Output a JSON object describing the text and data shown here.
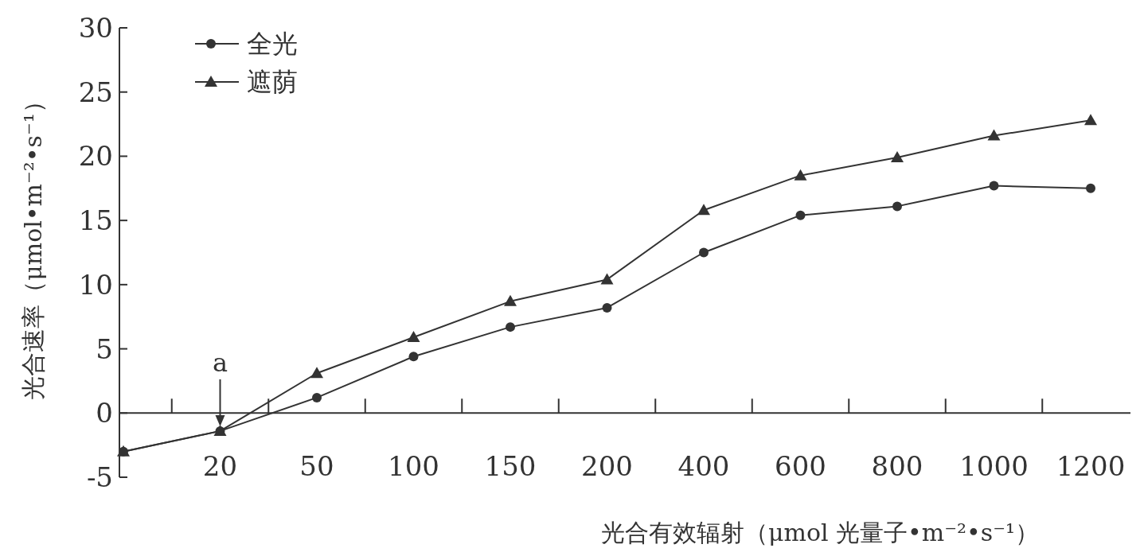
{
  "chart_data": {
    "type": "line",
    "xlabel": "光合有效辐射（μmol 光量子•m⁻²•s⁻¹）",
    "ylabel": "光合速率（μmol•m⁻²•s⁻¹）",
    "categories": [
      null,
      "20",
      "50",
      "100",
      "150",
      "200",
      "400",
      "600",
      "800",
      "1000",
      "1200"
    ],
    "series": [
      {
        "name": "全光",
        "color": "#333333",
        "marker": "circle",
        "values": [
          -3.0,
          -1.4,
          1.2,
          4.4,
          6.7,
          8.2,
          12.5,
          15.4,
          16.1,
          17.7,
          17.5
        ]
      },
      {
        "name": "遮荫",
        "color": "#333333",
        "marker": "triangle",
        "values": [
          -3.0,
          -1.4,
          3.1,
          5.9,
          8.7,
          10.4,
          15.8,
          18.5,
          19.9,
          21.6,
          22.8
        ]
      }
    ],
    "ylim": [
      -5,
      30
    ],
    "yticks": [
      -5,
      0,
      5,
      10,
      15,
      20,
      25,
      30
    ],
    "grid": false,
    "legend": "top left",
    "annotations": [
      {
        "text": "a",
        "x": "20",
        "y": -1.4
      }
    ]
  }
}
